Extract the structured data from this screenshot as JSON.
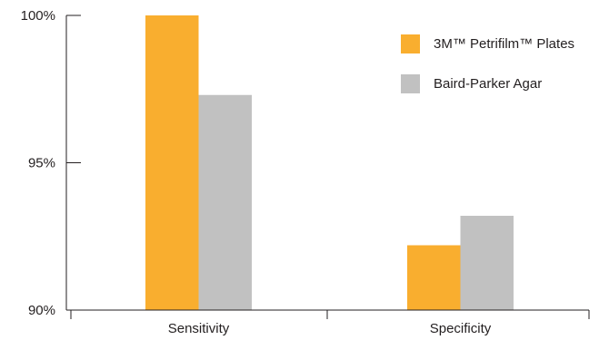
{
  "chart_data": {
    "type": "bar",
    "categories": [
      "Sensitivity",
      "Specificity"
    ],
    "series": [
      {
        "name": "3M™ Petrifilm™ Plates",
        "values": [
          100.0,
          92.2
        ],
        "color": "#f9ae2f"
      },
      {
        "name": "Baird-Parker Agar",
        "values": [
          97.3,
          93.2
        ],
        "color": "#c1c1c1"
      }
    ],
    "ylim": [
      90,
      100
    ],
    "yticks": [
      {
        "value": 100,
        "label": "100%"
      },
      {
        "value": 95,
        "label": "95%"
      },
      {
        "value": 90,
        "label": "90%"
      }
    ],
    "legend_position": "top-right",
    "grid": false
  }
}
